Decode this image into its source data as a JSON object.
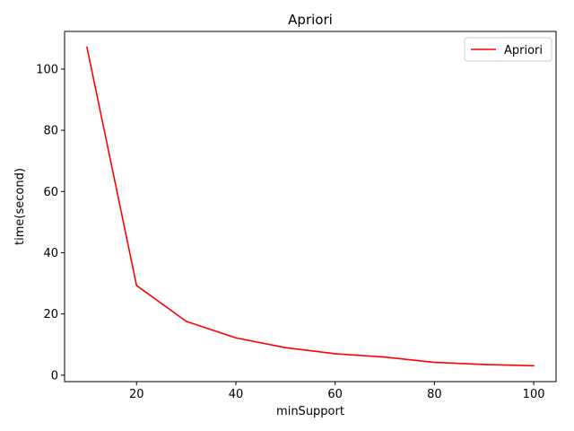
{
  "chart_data": {
    "type": "line",
    "title": "Apriori",
    "xlabel": "minSupport",
    "ylabel": "time(second)",
    "xlim": [
      5.5,
      104.5
    ],
    "ylim": [
      -2.1,
      112.3
    ],
    "xticks": [
      20,
      40,
      60,
      80,
      100
    ],
    "yticks": [
      0,
      20,
      40,
      60,
      80,
      100
    ],
    "grid": false,
    "legend": "top-right",
    "series": [
      {
        "name": "Apriori",
        "color": "#ff0000",
        "x": [
          10,
          20,
          30,
          40,
          50,
          60,
          70,
          80,
          90,
          100
        ],
        "y": [
          107.2,
          29.3,
          17.6,
          12.2,
          9.0,
          7.0,
          5.9,
          4.2,
          3.5,
          3.1
        ]
      }
    ]
  }
}
